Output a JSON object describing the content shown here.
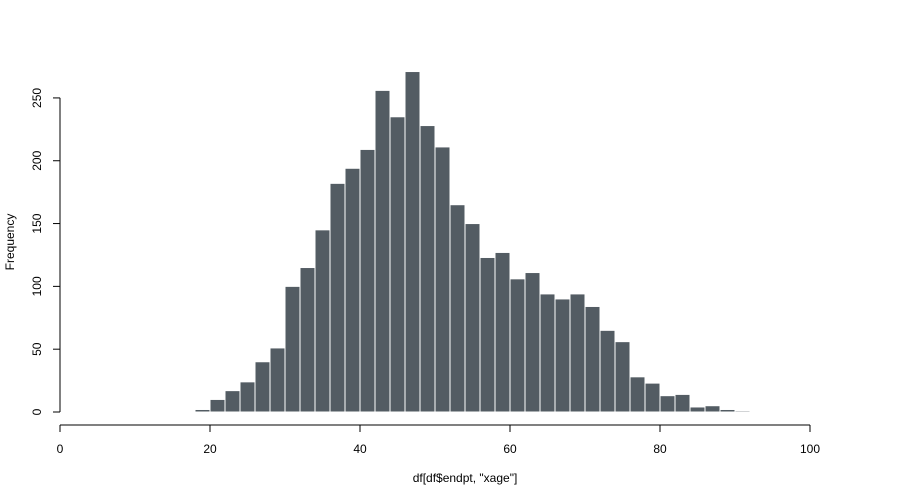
{
  "chart_data": {
    "type": "bar",
    "title": "",
    "xlabel": "df[df$endpt, \"xage\"]",
    "ylabel": "Frequency",
    "bin_width": 2,
    "bins": [
      {
        "start": 18,
        "end": 20,
        "count": 2
      },
      {
        "start": 20,
        "end": 22,
        "count": 10
      },
      {
        "start": 22,
        "end": 24,
        "count": 17
      },
      {
        "start": 24,
        "end": 26,
        "count": 24
      },
      {
        "start": 26,
        "end": 28,
        "count": 40
      },
      {
        "start": 28,
        "end": 30,
        "count": 51
      },
      {
        "start": 30,
        "end": 32,
        "count": 100
      },
      {
        "start": 32,
        "end": 34,
        "count": 115
      },
      {
        "start": 34,
        "end": 36,
        "count": 145
      },
      {
        "start": 36,
        "end": 38,
        "count": 182
      },
      {
        "start": 38,
        "end": 40,
        "count": 194
      },
      {
        "start": 40,
        "end": 42,
        "count": 209
      },
      {
        "start": 42,
        "end": 44,
        "count": 256
      },
      {
        "start": 44,
        "end": 46,
        "count": 235
      },
      {
        "start": 46,
        "end": 48,
        "count": 271
      },
      {
        "start": 48,
        "end": 50,
        "count": 228
      },
      {
        "start": 50,
        "end": 52,
        "count": 211
      },
      {
        "start": 52,
        "end": 54,
        "count": 165
      },
      {
        "start": 54,
        "end": 56,
        "count": 150
      },
      {
        "start": 56,
        "end": 58,
        "count": 123
      },
      {
        "start": 58,
        "end": 60,
        "count": 127
      },
      {
        "start": 60,
        "end": 62,
        "count": 106
      },
      {
        "start": 62,
        "end": 64,
        "count": 111
      },
      {
        "start": 64,
        "end": 66,
        "count": 94
      },
      {
        "start": 66,
        "end": 68,
        "count": 90
      },
      {
        "start": 68,
        "end": 70,
        "count": 94
      },
      {
        "start": 70,
        "end": 72,
        "count": 84
      },
      {
        "start": 72,
        "end": 74,
        "count": 65
      },
      {
        "start": 74,
        "end": 76,
        "count": 56
      },
      {
        "start": 76,
        "end": 78,
        "count": 28
      },
      {
        "start": 78,
        "end": 80,
        "count": 23
      },
      {
        "start": 80,
        "end": 82,
        "count": 13
      },
      {
        "start": 82,
        "end": 84,
        "count": 14
      },
      {
        "start": 84,
        "end": 86,
        "count": 4
      },
      {
        "start": 86,
        "end": 88,
        "count": 5
      },
      {
        "start": 88,
        "end": 90,
        "count": 2
      },
      {
        "start": 90,
        "end": 92,
        "count": 1
      }
    ],
    "xlim": [
      0,
      100
    ],
    "ylim": [
      0,
      271
    ],
    "x_ticks": [
      0,
      20,
      40,
      60,
      80,
      100
    ],
    "y_ticks": [
      0,
      50,
      100,
      150,
      200,
      250
    ],
    "x_tick_labels": [
      "0",
      "20",
      "40",
      "60",
      "80",
      "100"
    ],
    "y_tick_labels": [
      "0",
      "50",
      "100",
      "150",
      "200",
      "250"
    ],
    "grid": false,
    "legend": "none",
    "colors": {
      "bar_fill": "#535c63",
      "bar_border": "#ffffff",
      "axis": "#000000",
      "background": "#ffffff"
    }
  }
}
